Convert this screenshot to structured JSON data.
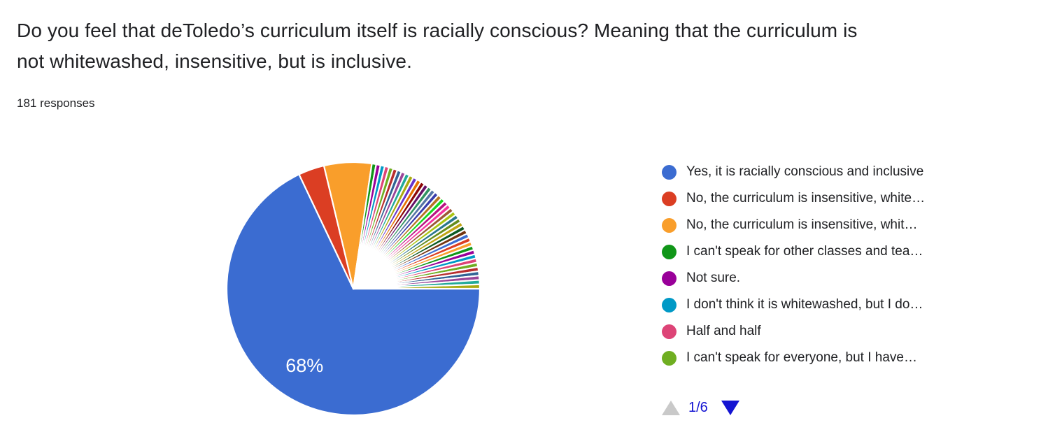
{
  "header": {
    "title": "Do you feel that deToledo’s curriculum itself is racially conscious? Meaning that the curriculum is not whitewashed, insensitive, but is inclusive.",
    "responses": "181 responses"
  },
  "chart_data": {
    "type": "pie",
    "title": "Do you feel that deToledo’s curriculum itself is racially conscious? Meaning that the curriculum is not whitewashed, insensitive, but is inclusive.",
    "total_responses": 181,
    "start_angle_deg": 90,
    "direction": "clockwise",
    "legend_position": "right",
    "slice_border_color": "#FFFFFF",
    "slices": [
      {
        "label": "Yes, it is racially conscious and inclusive",
        "value": 123,
        "percent_shown": "68%",
        "color": "#3B6CD1"
      },
      {
        "label": "No, the curriculum is insensitive, white…",
        "value": 6,
        "color": "#DB3E23"
      },
      {
        "label": "No, the curriculum is insensitive, whit…",
        "value": 11,
        "color": "#F99E2B"
      },
      {
        "label": "I can't speak for other classes and tea…",
        "value": 1,
        "color": "#109618"
      },
      {
        "label": "Not sure.",
        "value": 1,
        "color": "#990099"
      },
      {
        "label": "I don't think it is whitewashed, but I do…",
        "value": 1,
        "color": "#0099C6"
      },
      {
        "label": "Half and half",
        "value": 1,
        "color": "#DD4477"
      },
      {
        "label": "I can't speak for everyone, but I have…",
        "value": 1,
        "color": "#6FAE21"
      },
      {
        "value": 1,
        "color": "#B82E2E"
      },
      {
        "value": 1,
        "color": "#316395"
      },
      {
        "value": 1,
        "color": "#994499"
      },
      {
        "value": 1,
        "color": "#22AA99"
      },
      {
        "value": 1,
        "color": "#AAAA11"
      },
      {
        "value": 1,
        "color": "#6633CC"
      },
      {
        "value": 1,
        "color": "#E67300"
      },
      {
        "value": 1,
        "color": "#8B0707"
      },
      {
        "value": 1,
        "color": "#651067"
      },
      {
        "value": 1,
        "color": "#329262"
      },
      {
        "value": 1,
        "color": "#5574A6"
      },
      {
        "value": 1,
        "color": "#3B3EAC"
      },
      {
        "value": 1,
        "color": "#B77322"
      },
      {
        "value": 1,
        "color": "#16D620"
      },
      {
        "value": 1,
        "color": "#B91383"
      },
      {
        "value": 1,
        "color": "#F4359E"
      },
      {
        "value": 1,
        "color": "#9C5935"
      },
      {
        "value": 1,
        "color": "#A9C413"
      },
      {
        "value": 1,
        "color": "#2A778D"
      },
      {
        "value": 1,
        "color": "#668D1C"
      },
      {
        "value": 1,
        "color": "#BEA413"
      },
      {
        "value": 1,
        "color": "#0C5922"
      },
      {
        "value": 1,
        "color": "#743411"
      },
      {
        "value": 1,
        "color": "#3B6CD1"
      },
      {
        "value": 1,
        "color": "#DB3E23"
      },
      {
        "value": 1,
        "color": "#F99E2B"
      },
      {
        "value": 1,
        "color": "#109618"
      },
      {
        "value": 1,
        "color": "#990099"
      },
      {
        "value": 1,
        "color": "#0099C6"
      },
      {
        "value": 1,
        "color": "#DD4477"
      },
      {
        "value": 1,
        "color": "#6FAE21"
      },
      {
        "value": 1,
        "color": "#B82E2E"
      },
      {
        "value": 1,
        "color": "#316395"
      },
      {
        "value": 1,
        "color": "#994499"
      },
      {
        "value": 1,
        "color": "#22AA99"
      },
      {
        "value": 1,
        "color": "#AAAA11"
      }
    ]
  },
  "legend": {
    "pagination": {
      "label": "1/6",
      "label_color": "#1414D2",
      "up_arrow_color": "#C9C9C9",
      "down_arrow_color": "#1414D2"
    }
  }
}
